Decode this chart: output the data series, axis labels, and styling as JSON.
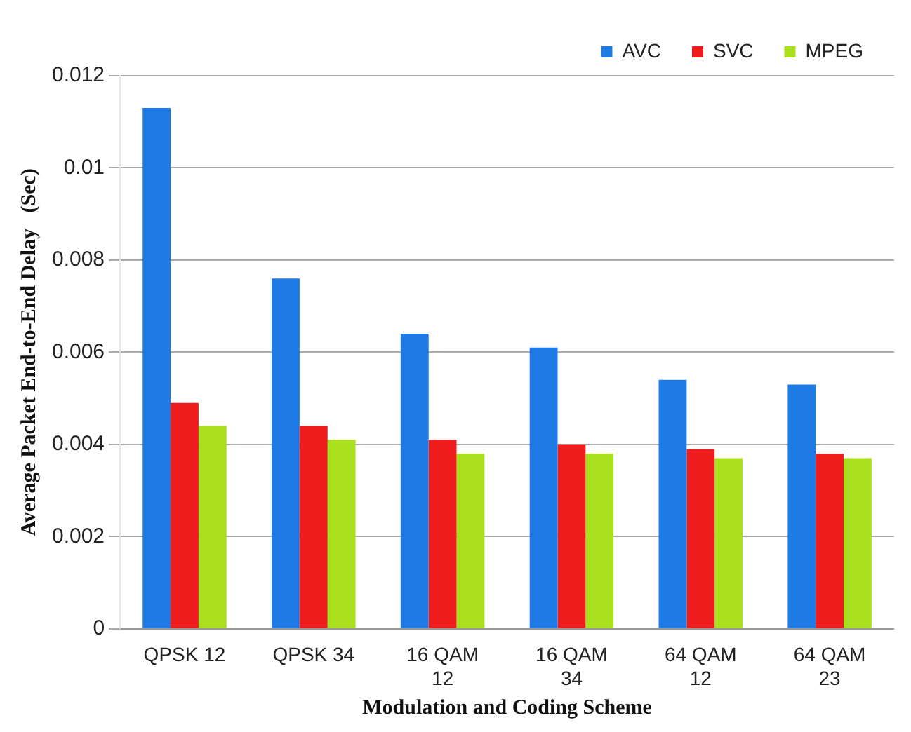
{
  "chart_data": {
    "type": "bar",
    "xlabel": "Modulation and Coding Scheme",
    "ylabel": "Average Packet End-to-End Delay   (Sec)",
    "categories": [
      "QPSK 12",
      "QPSK 34",
      "16 QAM 12",
      "16 QAM 34",
      "64 QAM 12",
      "64 QAM 23"
    ],
    "series": [
      {
        "name": "AVC",
        "color": "#1e7be6",
        "values": [
          0.0113,
          0.0076,
          0.0064,
          0.0061,
          0.0054,
          0.0053
        ]
      },
      {
        "name": "SVC",
        "color": "#ee1c1c",
        "values": [
          0.0049,
          0.0044,
          0.0041,
          0.004,
          0.0039,
          0.0038
        ]
      },
      {
        "name": "MPEG",
        "color": "#a8e01e",
        "values": [
          0.0044,
          0.0041,
          0.0038,
          0.0038,
          0.0037,
          0.0037
        ]
      }
    ],
    "ylim": [
      0,
      0.012
    ],
    "yticks": [
      0,
      0.002,
      0.004,
      0.006,
      0.008,
      0.01,
      0.012
    ],
    "grid": "y",
    "legend": "top right"
  }
}
